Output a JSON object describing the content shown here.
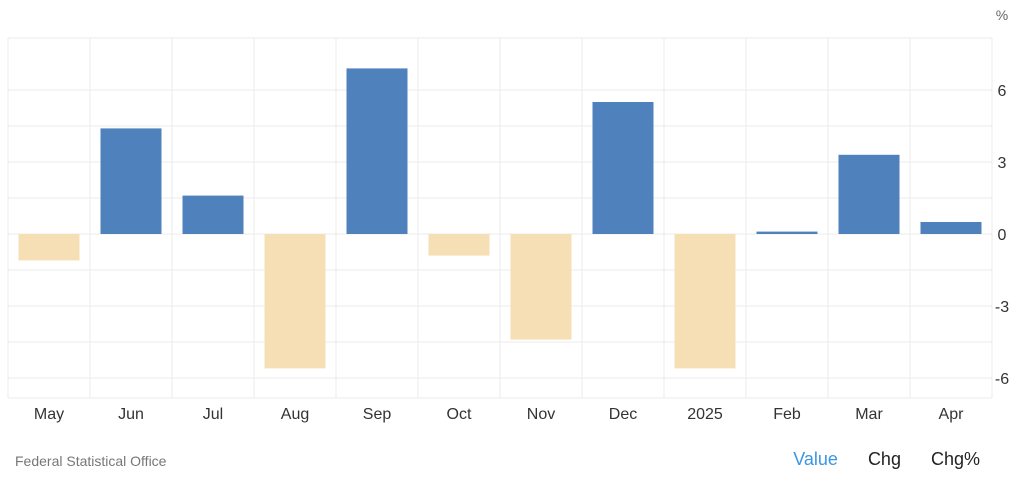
{
  "chart_data": {
    "type": "bar",
    "categories": [
      "May",
      "Jun",
      "Jul",
      "Aug",
      "Sep",
      "Oct",
      "Nov",
      "Dec",
      "2025",
      "Feb",
      "Mar",
      "Apr"
    ],
    "values": [
      -1.1,
      4.4,
      1.6,
      -5.6,
      6.9,
      -0.9,
      -4.4,
      5.5,
      -5.6,
      0.1,
      3.3,
      0.5
    ],
    "ylim": [
      -7.4,
      8.0
    ],
    "yticks": [
      6,
      3,
      0,
      -3,
      -6
    ],
    "unit": "%",
    "grid": true,
    "positive_color": "#4f81bd",
    "negative_color": "#f6dfb4"
  },
  "footer": {
    "source": "Federal Statistical Office",
    "tabs": [
      {
        "label": "Value",
        "active": true
      },
      {
        "label": "Chg",
        "active": false
      },
      {
        "label": "Chg%",
        "active": false
      }
    ]
  },
  "colors": {
    "accent": "#3c96e0",
    "grid": "#ebebeb"
  }
}
